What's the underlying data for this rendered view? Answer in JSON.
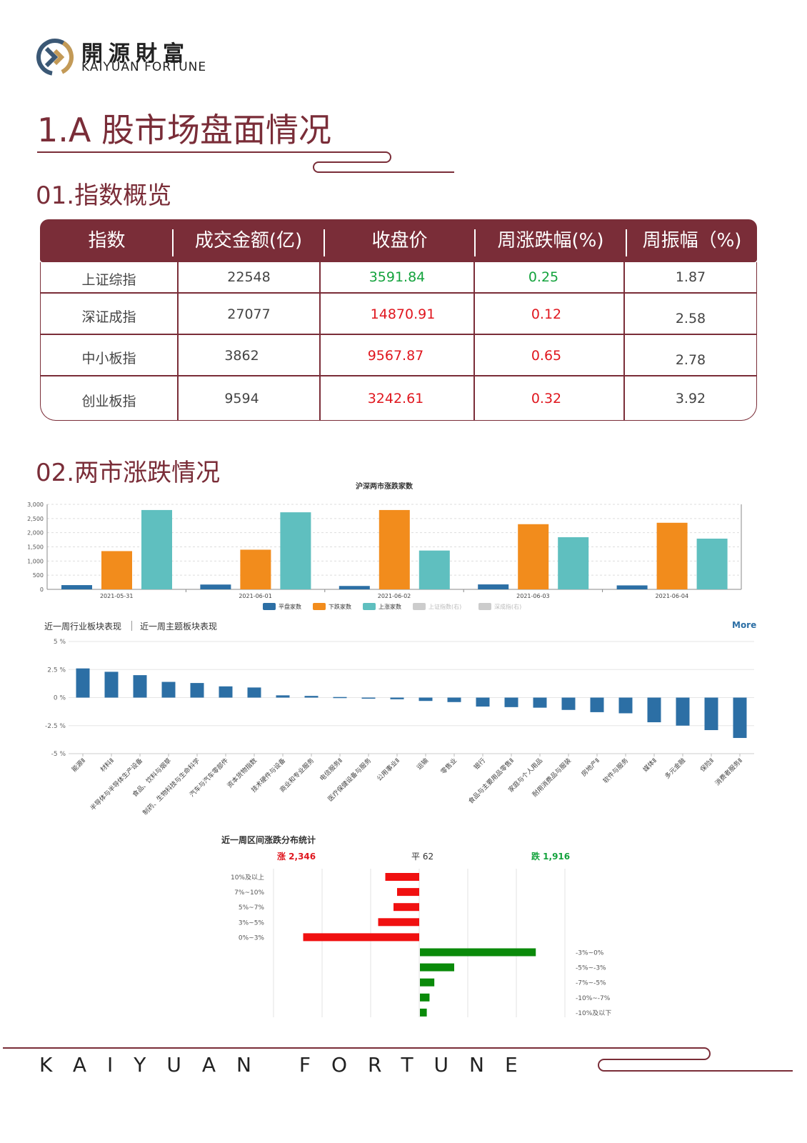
{
  "brand": {
    "name_cn": "開源財富",
    "name_en": "KAIYUAN FORTUNE",
    "colors": {
      "primary": "#7a2d38",
      "gold": "#c39a57",
      "steel": "#3b5875"
    }
  },
  "section_title": "1.A 股市场盘面情况",
  "sub1_title": "01.指数概览",
  "sub2_title": "02.两市涨跌情况",
  "index_table": {
    "headers": [
      "指数",
      "成交金额(亿)",
      "收盘价",
      "周涨跌幅(%)",
      "周振幅（%)"
    ],
    "rows": [
      {
        "name": "上证综指",
        "turnover": "22548",
        "close": "3591.84",
        "weekly_change": "0.25",
        "amplitude": "1.87",
        "trend": "green"
      },
      {
        "name": "深证成指",
        "turnover": "27077",
        "close": "14870.91",
        "weekly_change": "0.12",
        "amplitude": "2.58",
        "trend": "red"
      },
      {
        "name": "中小板指",
        "turnover": "3862",
        "close": "9567.87",
        "weekly_change": "0.65",
        "amplitude": "2.78",
        "trend": "red"
      },
      {
        "name": "创业板指",
        "turnover": "9594",
        "close": "3242.61",
        "weekly_change": "0.32",
        "amplitude": "3.92",
        "trend": "red"
      }
    ]
  },
  "chart_data": [
    {
      "type": "bar",
      "title": "沪深两市涨跌家数",
      "categories": [
        "2021-05-31",
        "2021-06-01",
        "2021-06-02",
        "2021-06-03",
        "2021-06-04"
      ],
      "series": [
        {
          "name": "平盘家数",
          "color": "#2c6fa5",
          "values": [
            150,
            170,
            120,
            175,
            140
          ]
        },
        {
          "name": "下跌家数",
          "color": "#f28c1c",
          "values": [
            1350,
            1400,
            2800,
            2300,
            2350
          ]
        },
        {
          "name": "上涨家数",
          "color": "#5fbfbf",
          "values": [
            2800,
            2720,
            1370,
            1840,
            1790
          ]
        }
      ],
      "legend_inactive": [
        "上证指数(右)",
        "深成指(右)"
      ],
      "yticks": [
        "0",
        "500",
        "1,000",
        "1,500",
        "2,000",
        "2,500",
        "3,000"
      ],
      "ylim": [
        0,
        3000
      ],
      "legend_position": "bottom"
    },
    {
      "type": "bar",
      "tabs": [
        "近一周行业板块表现",
        "近一周主题板块表现"
      ],
      "more_label": "More",
      "categories": [
        "能源Ⅱ",
        "材料Ⅱ",
        "半导体与半导体生产设备",
        "食品、饮料与烟草",
        "制药、生物科技与生命科学",
        "汽车与汽车零部件",
        "资本货物指数",
        "技术硬件与设备",
        "商业和专业服务",
        "电信服务Ⅱ",
        "医疗保健设备与服务",
        "公用事业Ⅱ",
        "运输",
        "零售业",
        "银行",
        "食品与主要用品零售Ⅱ",
        "家庭与个人用品",
        "耐用消费品与服装",
        "房地产Ⅱ",
        "软件与服务",
        "媒体Ⅱ",
        "多元金融",
        "保险Ⅱ",
        "消费者服务Ⅱ"
      ],
      "values": [
        2.6,
        2.3,
        2.0,
        1.4,
        1.3,
        1.0,
        0.9,
        0.2,
        0.15,
        0.05,
        -0.05,
        -0.15,
        -0.3,
        -0.4,
        -0.8,
        -0.85,
        -0.9,
        -1.1,
        -1.3,
        -1.4,
        -2.2,
        -2.5,
        -2.9,
        -3.6
      ],
      "yticks": [
        "5 %",
        "2.5 %",
        "0 %",
        "-2.5 %",
        "-5 %"
      ],
      "ylim": [
        -5,
        5
      ],
      "color": "#2c6fa5"
    },
    {
      "type": "bar",
      "title": "近一周区间涨跌分布统计",
      "summary": {
        "up": "涨 2,346",
        "flat": "平 62",
        "down": "跌 1,916"
      },
      "up_categories": [
        "10%及以上",
        "7%~10%",
        "5%~7%",
        "3%~5%",
        "0%~3%"
      ],
      "up_values": [
        95,
        62,
        72,
        115,
        325
      ],
      "down_categories": [
        "-3%~0%",
        "-5%~-3%",
        "-7%~-5%",
        "-10%~-7%",
        "-10%及以下"
      ],
      "down_values": [
        338,
        100,
        42,
        28,
        20
      ],
      "up_color": "#f01010",
      "down_color": "#0a8a0a"
    }
  ],
  "footer": {
    "text": "KAIYUAN FORTUNE"
  }
}
